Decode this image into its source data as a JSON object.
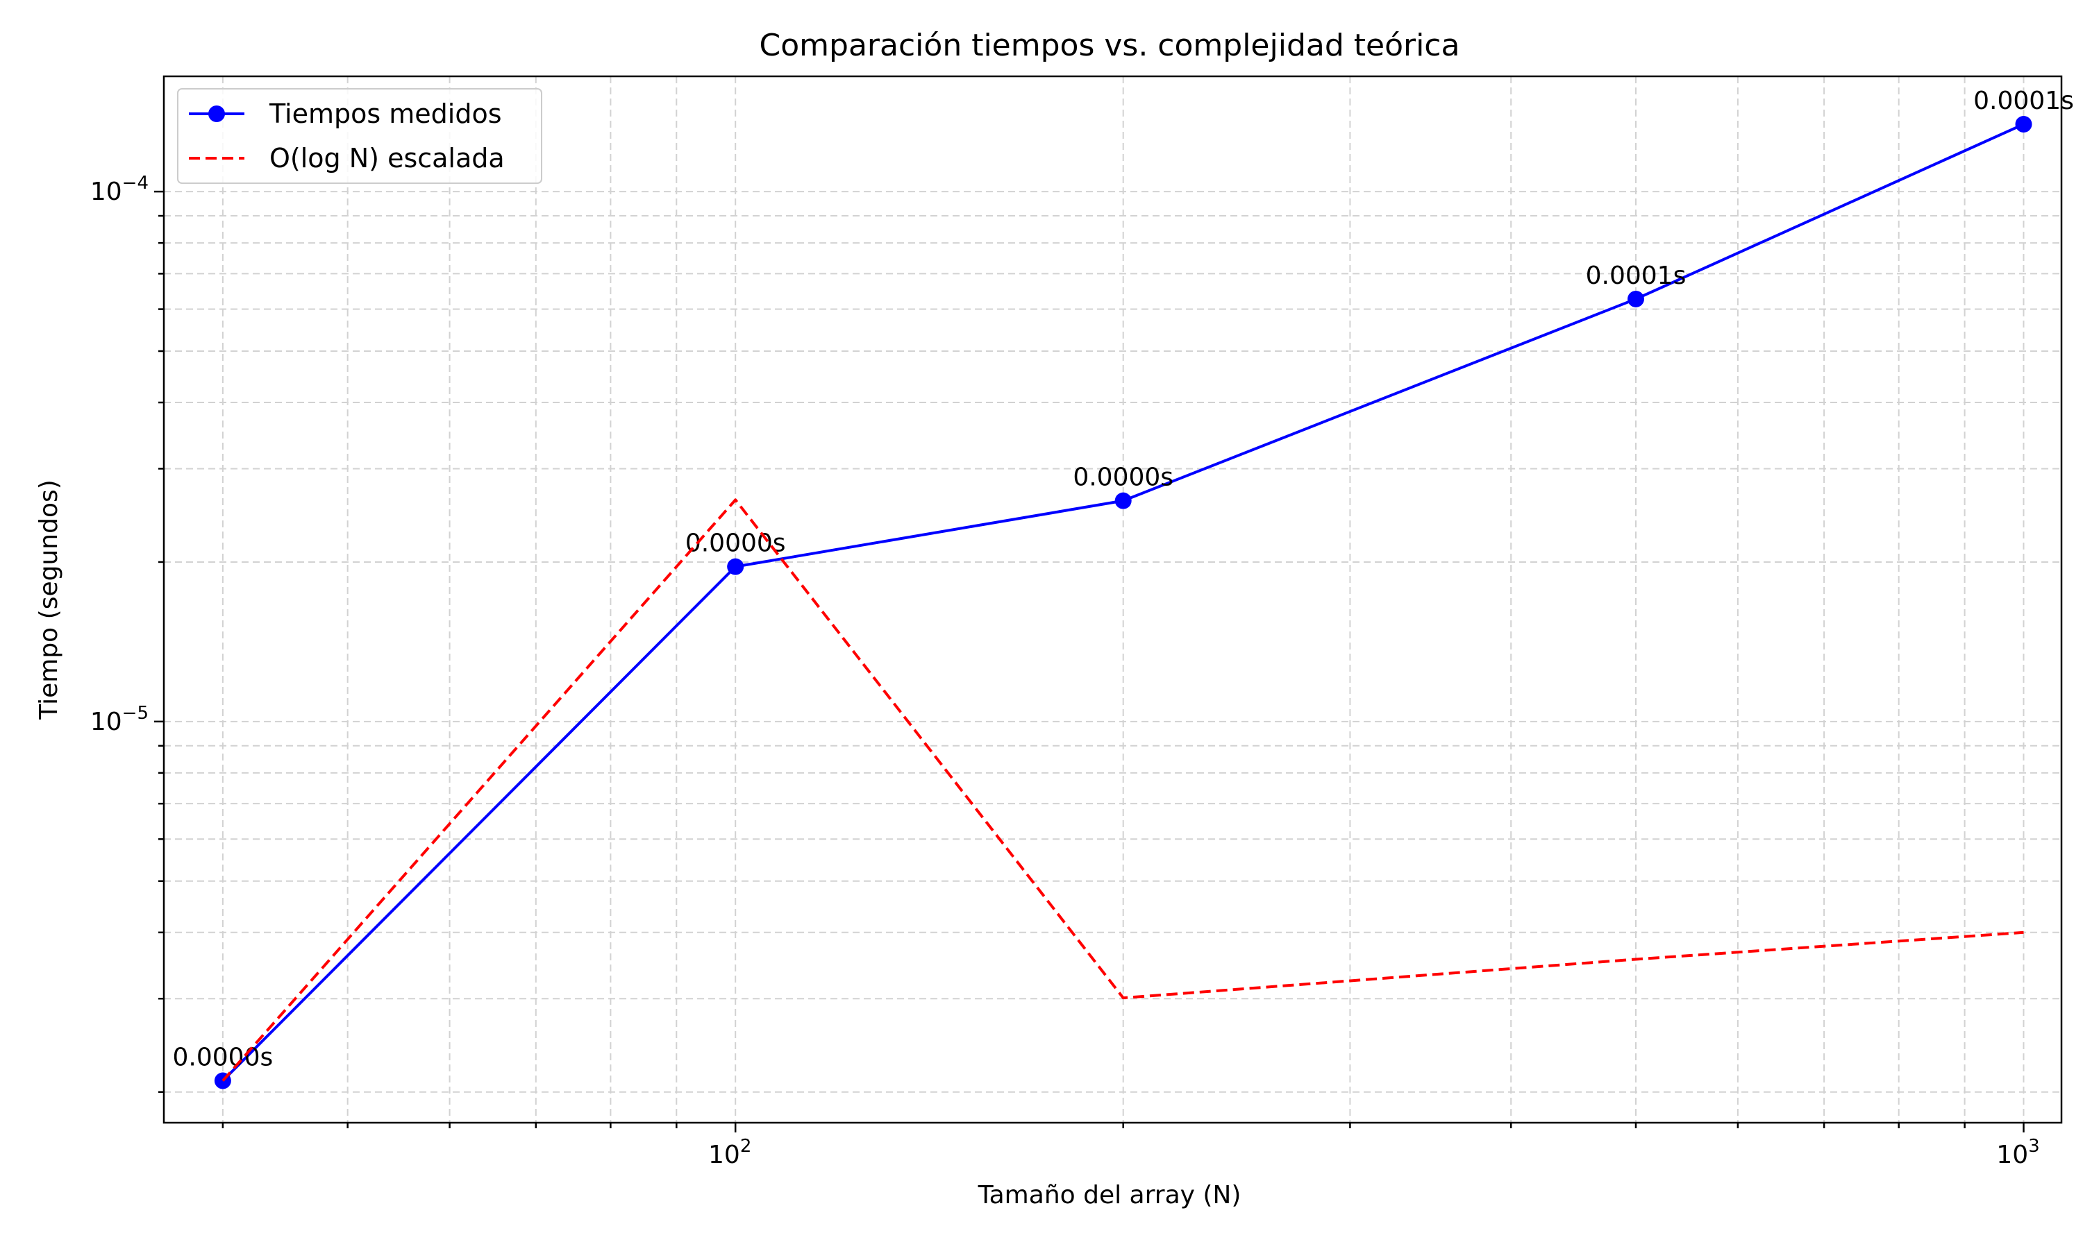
{
  "chart_data": {
    "type": "line",
    "title": "Comparación tiempos vs. complejidad teórica",
    "xlabel": "Tamaño del array (N)",
    "ylabel": "Tiempo (segundos)",
    "xscale": "log",
    "yscale": "log",
    "xlim": [
      36,
      1070
    ],
    "ylim": [
      1.75e-06,
      0.000165
    ],
    "grid": true,
    "legend_position": "top-left",
    "x_ticks": [
      {
        "value": 100,
        "base": "10",
        "exp": "2"
      },
      {
        "value": 1000,
        "base": "10",
        "exp": "3"
      }
    ],
    "y_ticks": [
      {
        "value": 1e-05,
        "base": "10",
        "exp": "−5"
      },
      {
        "value": 0.0001,
        "base": "10",
        "exp": "−4"
      }
    ],
    "series": [
      {
        "name": "Tiempos medidos",
        "color": "#0000ff",
        "style": "solid",
        "marker": "circle",
        "x": [
          40,
          100,
          200,
          500,
          1000
        ],
        "y": [
          2.1e-06,
          1.96e-05,
          2.61e-05,
          6.27e-05,
          0.000134
        ],
        "labels": [
          "0.0000s",
          "0.0000s",
          "0.0000s",
          "0.0001s",
          "0.0001s"
        ]
      },
      {
        "name": "O(log N) escalada",
        "color": "#ff0000",
        "style": "dashed",
        "marker": "none",
        "x": [
          40,
          100,
          200,
          500,
          1000
        ],
        "y": [
          2.1e-06,
          2.62e-05,
          3.01e-06,
          3.56e-06,
          4e-06
        ],
        "labels": []
      }
    ]
  }
}
